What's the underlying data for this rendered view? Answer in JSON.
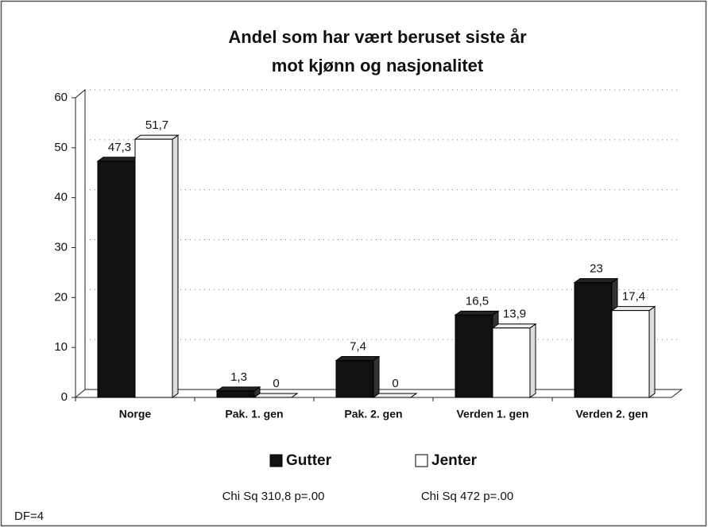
{
  "chart_data": {
    "type": "bar",
    "title": "Andel som har vært beruset siste år",
    "subtitle": "mot kjønn og nasjonalitet",
    "categories": [
      "Norge",
      "Pak. 1. gen",
      "Pak. 2. gen",
      "Verden 1. gen",
      "Verden 2. gen"
    ],
    "series": [
      {
        "name": "Gutter",
        "color": "#111111",
        "values": [
          47.3,
          1.3,
          7.4,
          16.5,
          23
        ],
        "value_labels": [
          "47,3",
          "1,3",
          "7,4",
          "16,5",
          "23"
        ]
      },
      {
        "name": "Jenter",
        "color": "#ffffff",
        "values": [
          51.7,
          0,
          0,
          13.9,
          17.4
        ],
        "value_labels": [
          "51,7",
          "0",
          "0",
          "13,9",
          "17,4"
        ]
      }
    ],
    "legend_notes": [
      "Chi Sq 310,8 p=.00",
      "Chi Sq 472 p=.00"
    ],
    "annotation": "DF=4",
    "ylim": [
      0,
      60
    ],
    "yticks": [
      0,
      10,
      20,
      30,
      40,
      50,
      60
    ],
    "grid": true,
    "legend": "bottom"
  }
}
